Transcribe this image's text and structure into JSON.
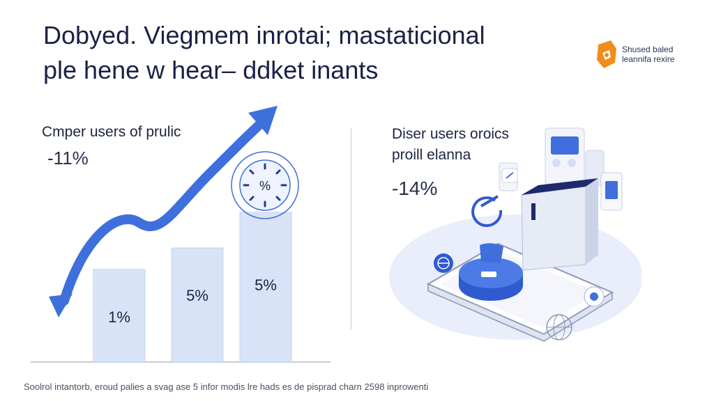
{
  "headline": {
    "line1": "Dobyed. Viegmem inrotai; mastaticional",
    "line2": "ple hene w hear– ddket inants"
  },
  "brand": {
    "line1": "Shused baled",
    "line2": "leannifa rexire",
    "accent": "#f28c1c",
    "icon": "brand-logo-icon"
  },
  "left_stat": {
    "label": "Cmper users of prulic",
    "value": "-11%"
  },
  "right_stat": {
    "line1": "Diser users oroics",
    "line2": "proill elanna",
    "value": "-14%"
  },
  "badge": {
    "text": "%",
    "icon": "percent-sun-icon"
  },
  "footer": {
    "text": "Soolrol intantorb, eroud palies a svag ase 5 infor modis lre hads es de pisprad charn 2598 inprowenti"
  },
  "colors": {
    "bar_fill": "#d8e3f7",
    "bar_stroke": "#c3d3ef",
    "arrow": "#3f6fdc",
    "text": "#1c2340",
    "axis": "#c9ccd6"
  },
  "chart_data": {
    "type": "bar",
    "categories": [
      "",
      "",
      ""
    ],
    "values": [
      1,
      5,
      5
    ],
    "bar_labels": [
      "1%",
      "5%",
      "5%"
    ],
    "bar_heights_rel": [
      0.52,
      0.64,
      0.84
    ],
    "title": "",
    "xlabel": "",
    "ylabel": "",
    "grid": false,
    "trend_arrow": true
  }
}
